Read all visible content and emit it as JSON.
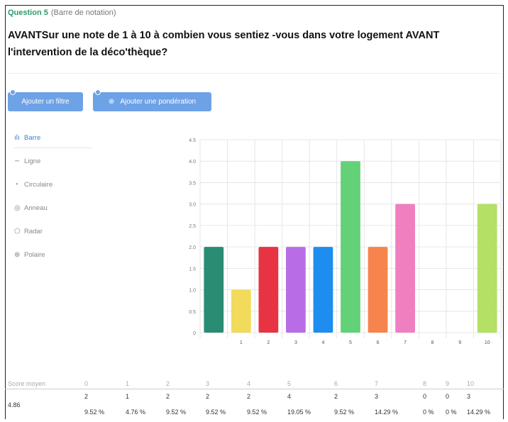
{
  "question": {
    "number_label": "Question 5",
    "type_label": "(Barre de notation)",
    "title": "AVANTSur une note de 1 à 10 à combien vous sentiez -vous dans votre logement AVANT l'intervention de la déco'thèque?"
  },
  "toolbar": {
    "filter_label": "Ajouter un filtre",
    "weight_label": "Ajouter une pondération",
    "weight_icon": "globe-icon"
  },
  "chart_types": [
    {
      "label": "Barre",
      "icon": "bar-chart-icon",
      "glyph": "ılı",
      "active": true
    },
    {
      "label": "Ligne",
      "icon": "line-chart-icon",
      "glyph": "∼",
      "active": false
    },
    {
      "label": "Circulaire",
      "icon": "pie-chart-icon",
      "glyph": "◔",
      "active": false
    },
    {
      "label": "Anneau",
      "icon": "donut-chart-icon",
      "glyph": "◎",
      "active": false
    },
    {
      "label": "Radar",
      "icon": "radar-chart-icon",
      "glyph": "⬠",
      "active": false
    },
    {
      "label": "Polaire",
      "icon": "polar-chart-icon",
      "glyph": "⊕",
      "active": false
    }
  ],
  "chart_data": {
    "type": "bar",
    "categories": [
      "0",
      "1",
      "2",
      "3",
      "4",
      "5",
      "6",
      "7",
      "8",
      "9",
      "10"
    ],
    "tick_labels": [
      "",
      "1",
      "2",
      "3",
      "4",
      "5",
      "6",
      "7",
      "8",
      "9",
      "10"
    ],
    "values": [
      2,
      1,
      2,
      2,
      2,
      4,
      2,
      3,
      0,
      0,
      3
    ],
    "colors": [
      "#2a8c73",
      "#f2da5b",
      "#e83342",
      "#b86de6",
      "#1e8df0",
      "#62d177",
      "#f7844c",
      "#ef7fbf",
      "#cccccc",
      "#cccccc",
      "#b3e065"
    ],
    "ylim": [
      0,
      4.5
    ],
    "yticks": [
      "0",
      "0.5",
      "1.0",
      "1.5",
      "2.0",
      "2.5",
      "3.0",
      "3.5",
      "4.0",
      "4.5"
    ],
    "grid": true,
    "title": "",
    "xlabel": "",
    "ylabel": ""
  },
  "stats": {
    "score_label": "Score moyen",
    "score_value": "4.86",
    "headers": [
      "0",
      "1",
      "2",
      "3",
      "4",
      "5",
      "6",
      "7",
      "8",
      "9",
      "10"
    ],
    "counts": [
      "2",
      "1",
      "2",
      "2",
      "2",
      "4",
      "2",
      "3",
      "0",
      "0",
      "3"
    ],
    "percents": [
      "9.52 %",
      "4.76 %",
      "9.52 %",
      "9.52 %",
      "9.52 %",
      "19.05 %",
      "9.52 %",
      "14.29 %",
      "0 %",
      "0 %",
      "14.29 %"
    ]
  }
}
